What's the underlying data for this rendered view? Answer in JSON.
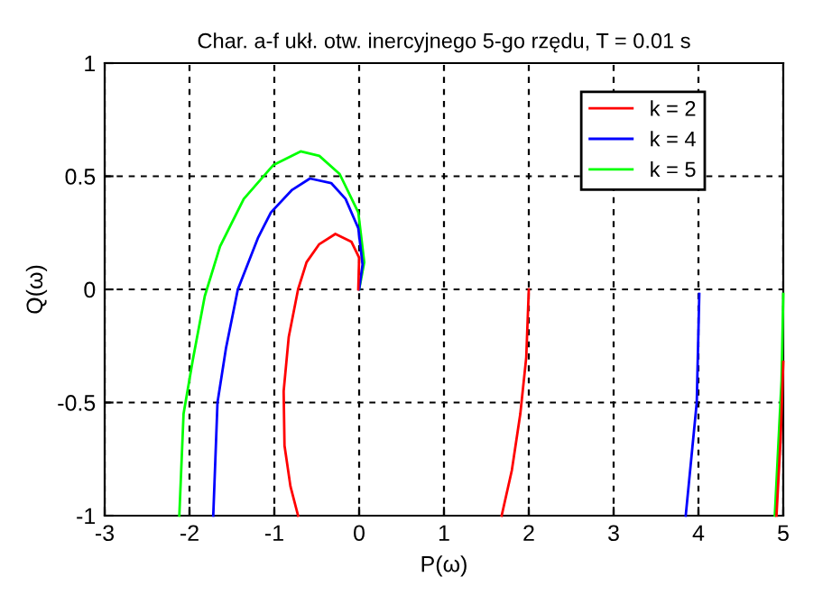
{
  "chart_data": {
    "type": "line",
    "title": "Char. a-f ukł. otw. inercyjnego 5-go rzędu, T = 0.01 s",
    "xlabel": "P(ω)",
    "ylabel": "Q(ω)",
    "xlim": [
      -3,
      5
    ],
    "ylim": [
      -1,
      1
    ],
    "xticks": [
      -3,
      -2,
      -1,
      0,
      1,
      2,
      3,
      4,
      5
    ],
    "yticks": [
      -1,
      -0.5,
      0,
      0.5,
      1
    ],
    "grid": true,
    "legend": "top right",
    "line_style": "solid",
    "marker": "none",
    "series": [
      {
        "name": "k = 2",
        "color": "#ff0000",
        "x": [
          -0.72,
          -0.81,
          -0.88,
          -0.89,
          -0.83,
          -0.72,
          -0.62,
          -0.47,
          -0.28,
          -0.09,
          0.0,
          -0.01,
          null,
          2.0,
          1.97,
          1.9,
          1.8,
          1.68,
          null,
          5.0,
          4.97,
          4.92
        ],
        "values": [
          -1.0,
          -0.87,
          -0.69,
          -0.45,
          -0.21,
          0.0,
          0.12,
          0.2,
          0.245,
          0.21,
          0.14,
          0.0,
          null,
          0.0,
          -0.3,
          -0.55,
          -0.8,
          -1.0,
          null,
          -0.32,
          -0.65,
          -1.0
        ]
      },
      {
        "name": "k = 4",
        "color": "#0000ff",
        "x": [
          -1.72,
          -1.67,
          -1.57,
          -1.43,
          -1.19,
          -1.04,
          -0.79,
          -0.58,
          -0.33,
          -0.16,
          -0.01,
          0.04,
          0.0,
          null,
          4.01,
          3.98,
          3.85
        ],
        "values": [
          -1.0,
          -0.5,
          -0.26,
          0.0,
          0.23,
          0.34,
          0.44,
          0.49,
          0.47,
          0.4,
          0.27,
          0.11,
          0.0,
          null,
          -0.02,
          -0.5,
          -1.0
        ]
      },
      {
        "name": "k = 5",
        "color": "#00ff00",
        "x": [
          -2.12,
          -2.07,
          -1.96,
          -1.82,
          -1.64,
          -1.36,
          -1.01,
          -0.69,
          -0.47,
          -0.23,
          -0.01,
          0.06,
          0.0,
          null,
          5.0,
          4.98,
          4.9
        ],
        "values": [
          -1.0,
          -0.55,
          -0.31,
          -0.03,
          0.19,
          0.4,
          0.55,
          0.61,
          0.59,
          0.51,
          0.34,
          0.12,
          0.0,
          null,
          -0.02,
          -0.4,
          -1.0
        ]
      }
    ]
  }
}
